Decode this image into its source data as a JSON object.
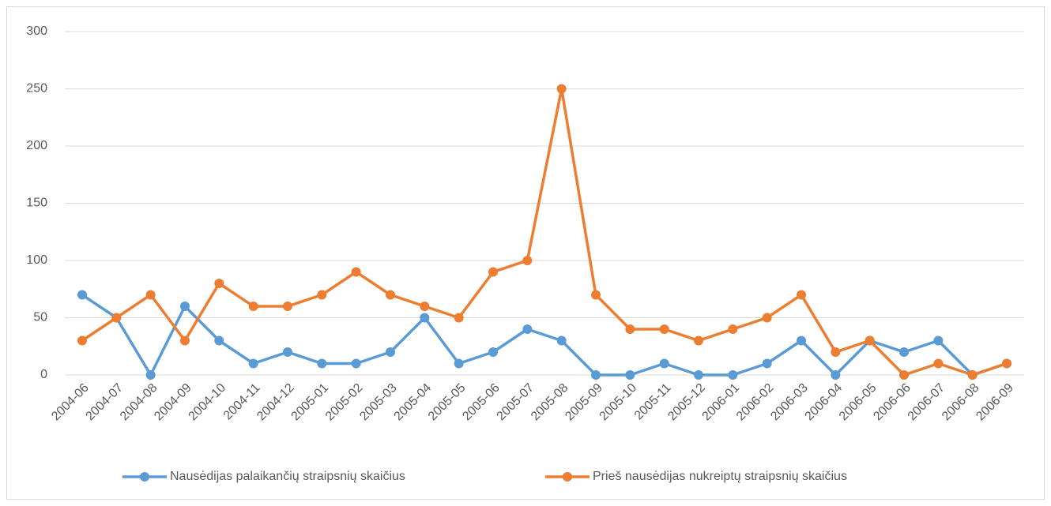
{
  "chart_data": {
    "type": "line",
    "categories": [
      "2004-06",
      "2004-07",
      "2004-08",
      "2004-09",
      "2004-10",
      "2004-11",
      "2004-12",
      "2005-01",
      "2005-02",
      "2005-03",
      "2005-04",
      "2005-05",
      "2005-06",
      "2005-07",
      "2005-08",
      "2005-09",
      "2005-10",
      "2005-11",
      "2005-12",
      "2006-01",
      "2006-02",
      "2006-03",
      "2006-04",
      "2006-05",
      "2006-06",
      "2006-07",
      "2006-08",
      "2006-09"
    ],
    "series": [
      {
        "name": "Nausėdijas palaikančių straipsnių skaičius",
        "color": "#5b9bd5",
        "values": [
          70,
          50,
          0,
          60,
          30,
          10,
          20,
          10,
          10,
          20,
          50,
          10,
          20,
          40,
          30,
          0,
          0,
          10,
          0,
          0,
          10,
          30,
          0,
          30,
          20,
          30,
          0,
          10
        ]
      },
      {
        "name": "Prieš nausėdijas nukreiptų straipsnių skaičius",
        "color": "#ed7d31",
        "values": [
          30,
          50,
          70,
          30,
          80,
          60,
          60,
          70,
          90,
          70,
          60,
          50,
          90,
          100,
          250,
          70,
          40,
          40,
          30,
          40,
          50,
          70,
          20,
          30,
          0,
          10,
          0,
          10
        ]
      }
    ],
    "ylim": [
      0,
      300
    ],
    "yticks": [
      0,
      50,
      100,
      150,
      200,
      250,
      300
    ],
    "grid": true,
    "legend": "bottom"
  }
}
